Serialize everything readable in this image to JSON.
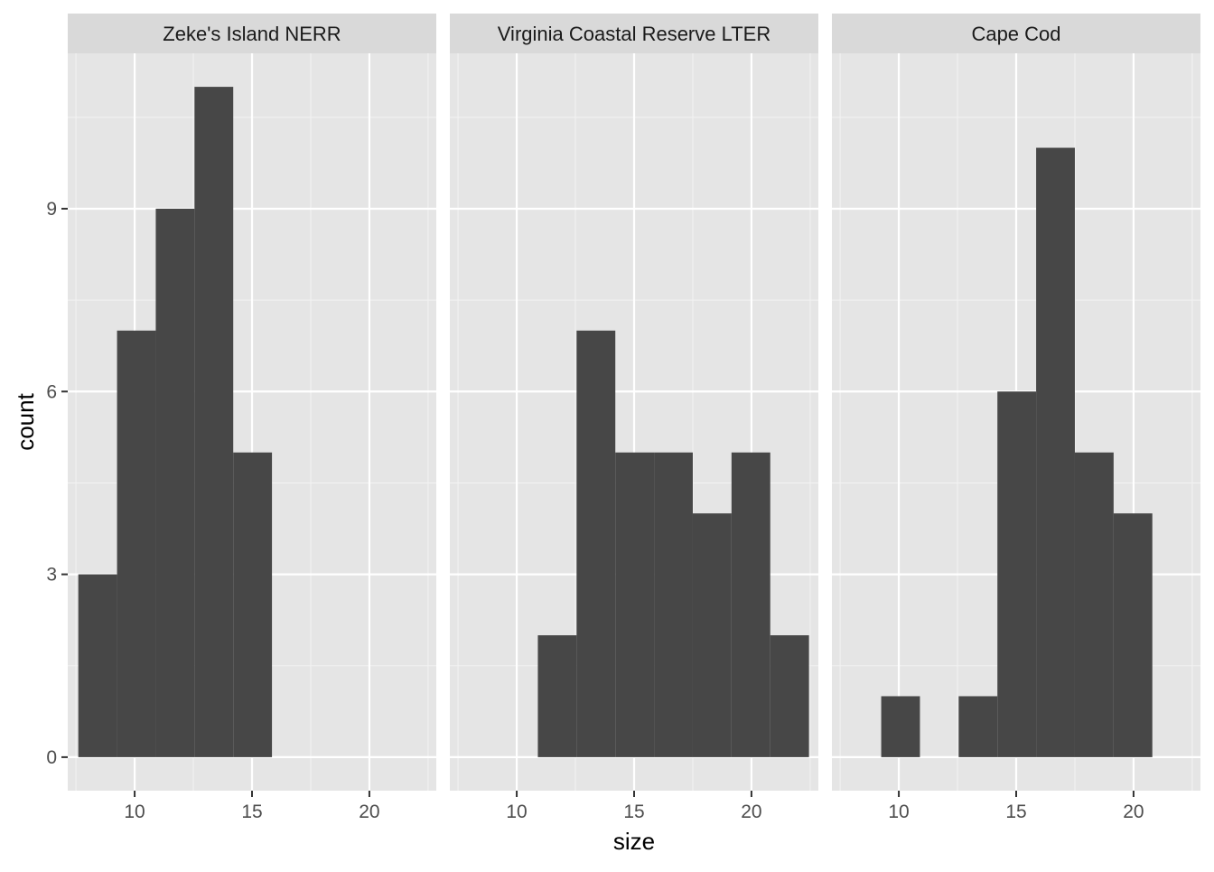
{
  "chart_data": {
    "type": "bar",
    "subtype": "faceted-histogram",
    "xlabel": "size",
    "ylabel": "count",
    "xlim": [
      7.15,
      22.85
    ],
    "ylim": [
      -0.55,
      11.55
    ],
    "x_ticks": [
      10,
      15,
      20
    ],
    "y_ticks": [
      0,
      3,
      6,
      9
    ],
    "grid": true,
    "legend": "none",
    "bar_color": "#474747",
    "panel_background": "#e5e5e5",
    "strip_background": "#d9d9d9",
    "bin_width": 1.65,
    "facets": [
      {
        "label": "Zeke's Island NERR",
        "bins": [
          {
            "x0": 7.6,
            "x1": 9.25,
            "count": 3
          },
          {
            "x0": 9.25,
            "x1": 10.9,
            "count": 7
          },
          {
            "x0": 10.9,
            "x1": 12.55,
            "count": 9
          },
          {
            "x0": 12.55,
            "x1": 14.2,
            "count": 11
          },
          {
            "x0": 14.2,
            "x1": 15.85,
            "count": 5
          }
        ]
      },
      {
        "label": "Virginia Coastal Reserve LTER",
        "bins": [
          {
            "x0": 10.9,
            "x1": 12.55,
            "count": 2
          },
          {
            "x0": 12.55,
            "x1": 14.2,
            "count": 7
          },
          {
            "x0": 14.2,
            "x1": 15.85,
            "count": 5
          },
          {
            "x0": 15.85,
            "x1": 17.5,
            "count": 5
          },
          {
            "x0": 17.5,
            "x1": 19.15,
            "count": 4
          },
          {
            "x0": 19.15,
            "x1": 20.8,
            "count": 5
          },
          {
            "x0": 20.8,
            "x1": 22.45,
            "count": 2
          }
        ]
      },
      {
        "label": "Cape Cod",
        "bins": [
          {
            "x0": 9.25,
            "x1": 10.9,
            "count": 1
          },
          {
            "x0": 12.55,
            "x1": 14.2,
            "count": 1
          },
          {
            "x0": 14.2,
            "x1": 15.85,
            "count": 6
          },
          {
            "x0": 15.85,
            "x1": 17.5,
            "count": 10
          },
          {
            "x0": 17.5,
            "x1": 19.15,
            "count": 5
          },
          {
            "x0": 19.15,
            "x1": 20.8,
            "count": 4
          }
        ]
      }
    ]
  }
}
